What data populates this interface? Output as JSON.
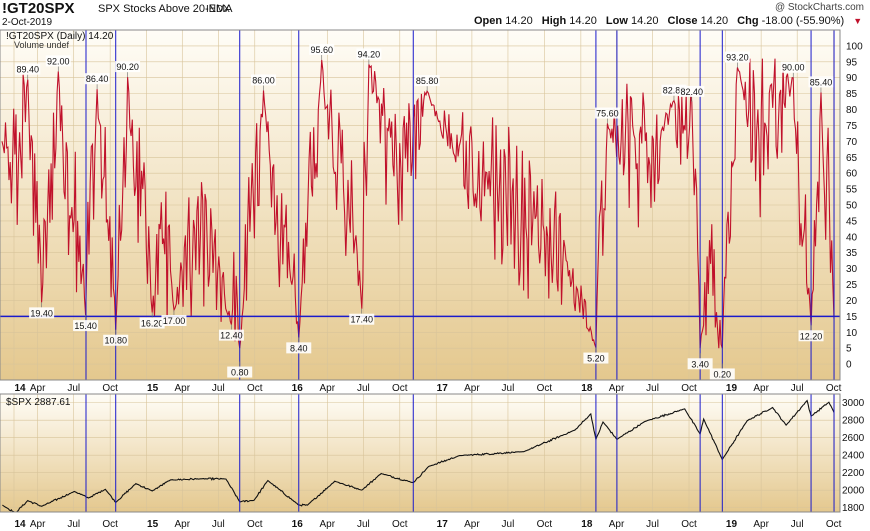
{
  "header": {
    "symbol": "!GT20SPX",
    "description": "SPX Stocks Above 20-EMA",
    "exchange": "INDX",
    "date": "2-Oct-2019",
    "watermark": "@ StockCharts.com",
    "open_label": "Open",
    "open": "14.20",
    "high_label": "High",
    "high": "14.20",
    "low_label": "Low",
    "low": "14.20",
    "close_label": "Close",
    "close": "14.20",
    "chg_label": "Chg",
    "chg": "-18.00 (-55.90%)",
    "chg_icon": "down-triangle-icon"
  },
  "colors": {
    "indicator_line": "#c0112b",
    "spx_line": "#111111",
    "event_lines": "#1a1acc",
    "threshold_line": "#1a1acc",
    "panel_top": "#fffdf7",
    "panel_bottom": "#e4c88e"
  },
  "chart_data": [
    {
      "type": "line",
      "legend": "!GT20SPX (Daily) 14.20",
      "legend2": "Volume undef",
      "ylim": [
        -5,
        105
      ],
      "yticks": [
        0,
        5,
        10,
        15,
        20,
        25,
        30,
        35,
        40,
        45,
        50,
        55,
        60,
        65,
        70,
        75,
        80,
        85,
        90,
        95,
        100
      ],
      "threshold": 15,
      "x_labels": [
        "14",
        "Apr",
        "Jul",
        "Oct",
        "15",
        "Apr",
        "Jul",
        "Oct",
        "16",
        "Apr",
        "Jul",
        "Oct",
        "17",
        "Apr",
        "Jul",
        "Oct",
        "18",
        "Apr",
        "Jul",
        "Oct",
        "19",
        "Apr",
        "Jul",
        "Oct"
      ],
      "event_dates": [
        "2014-08-01",
        "2014-10-15",
        "2015-08-24",
        "2016-01-20",
        "2016-11-04",
        "2018-02-08",
        "2018-04-02",
        "2018-10-29",
        "2018-12-24",
        "2019-08-05",
        "2019-10-02"
      ],
      "annotations": [
        {
          "date": "2014-04-11",
          "value": 19.4,
          "text": "19.40",
          "pos": "below"
        },
        {
          "date": "2014-07-31",
          "value": 15.4,
          "text": "15.40",
          "pos": "below"
        },
        {
          "date": "2014-10-15",
          "value": 10.8,
          "text": "10.80",
          "pos": "below"
        },
        {
          "date": "2015-01-15",
          "value": 16.2,
          "text": "16.20",
          "pos": "below"
        },
        {
          "date": "2015-03-11",
          "value": 17.0,
          "text": "17.00",
          "pos": "below"
        },
        {
          "date": "2015-08-03",
          "value": 12.4,
          "text": "12.40",
          "pos": "below"
        },
        {
          "date": "2015-08-24",
          "value": 0.8,
          "text": "0.80",
          "pos": "below"
        },
        {
          "date": "2016-01-20",
          "value": 8.4,
          "text": "8.40",
          "pos": "below"
        },
        {
          "date": "2016-06-27",
          "value": 17.4,
          "text": "17.40",
          "pos": "below"
        },
        {
          "date": "2018-02-08",
          "value": 5.2,
          "text": "5.20",
          "pos": "below"
        },
        {
          "date": "2018-10-29",
          "value": 3.4,
          "text": "3.40",
          "pos": "below"
        },
        {
          "date": "2018-12-24",
          "value": 0.2,
          "text": "0.20",
          "pos": "below"
        },
        {
          "date": "2019-08-05",
          "value": 12.2,
          "text": "12.20",
          "pos": "below"
        },
        {
          "date": "2014-03-07",
          "value": 89.4,
          "text": "89.40",
          "pos": "above"
        },
        {
          "date": "2014-05-23",
          "value": 92.0,
          "text": "92.00",
          "pos": "above"
        },
        {
          "date": "2014-08-29",
          "value": 86.4,
          "text": "86.40",
          "pos": "above"
        },
        {
          "date": "2014-11-14",
          "value": 90.2,
          "text": "90.20",
          "pos": "above"
        },
        {
          "date": "2015-10-23",
          "value": 86.0,
          "text": "86.00",
          "pos": "above"
        },
        {
          "date": "2016-03-18",
          "value": 95.6,
          "text": "95.60",
          "pos": "above"
        },
        {
          "date": "2016-07-15",
          "value": 94.2,
          "text": "94.20",
          "pos": "above"
        },
        {
          "date": "2016-12-09",
          "value": 85.8,
          "text": "85.80",
          "pos": "above"
        },
        {
          "date": "2018-03-09",
          "value": 75.6,
          "text": "75.60",
          "pos": "above"
        },
        {
          "date": "2018-08-24",
          "value": 82.8,
          "text": "82.80",
          "pos": "above"
        },
        {
          "date": "2018-10-08",
          "value": 82.4,
          "text": "82.40",
          "pos": "above"
        },
        {
          "date": "2019-01-31",
          "value": 93.2,
          "text": "93.20",
          "pos": "above"
        },
        {
          "date": "2019-06-21",
          "value": 90.0,
          "text": "90.00",
          "pos": "above"
        },
        {
          "date": "2019-08-30",
          "value": 85.4,
          "text": "85.40",
          "pos": "above"
        }
      ]
    },
    {
      "type": "line",
      "legend": "$SPX 2887.61",
      "ylim": [
        1750,
        3100
      ],
      "yticks": [
        1800,
        2000,
        2200,
        2400,
        2600,
        2800,
        3000
      ],
      "x_labels": [
        "14",
        "Apr",
        "Jul",
        "Oct",
        "15",
        "Apr",
        "Jul",
        "Oct",
        "16",
        "Apr",
        "Jul",
        "Oct",
        "17",
        "Apr",
        "Jul",
        "Oct",
        "18",
        "Apr",
        "Jul",
        "Oct",
        "19",
        "Apr",
        "Jul",
        "Oct"
      ],
      "anchors": [
        [
          "2014-01-02",
          1830
        ],
        [
          "2014-02-04",
          1740
        ],
        [
          "2014-03-07",
          1880
        ],
        [
          "2014-04-11",
          1815
        ],
        [
          "2014-07-03",
          1985
        ],
        [
          "2014-08-07",
          1910
        ],
        [
          "2014-09-19",
          2010
        ],
        [
          "2014-10-15",
          1860
        ],
        [
          "2014-12-05",
          2075
        ],
        [
          "2015-01-15",
          1990
        ],
        [
          "2015-03-02",
          2117
        ],
        [
          "2015-05-20",
          2130
        ],
        [
          "2015-07-20",
          2128
        ],
        [
          "2015-08-24",
          1867
        ],
        [
          "2015-09-29",
          1884
        ],
        [
          "2015-11-03",
          2110
        ],
        [
          "2016-01-20",
          1829
        ],
        [
          "2016-02-11",
          1829
        ],
        [
          "2016-04-20",
          2102
        ],
        [
          "2016-06-27",
          2000
        ],
        [
          "2016-08-15",
          2190
        ],
        [
          "2016-11-04",
          2085
        ],
        [
          "2016-12-13",
          2271
        ],
        [
          "2017-03-01",
          2395
        ],
        [
          "2017-08-10",
          2440
        ],
        [
          "2017-12-18",
          2690
        ],
        [
          "2018-01-26",
          2872
        ],
        [
          "2018-02-08",
          2581
        ],
        [
          "2018-02-26",
          2780
        ],
        [
          "2018-04-02",
          2581
        ],
        [
          "2018-06-12",
          2786
        ],
        [
          "2018-09-20",
          2930
        ],
        [
          "2018-10-29",
          2641
        ],
        [
          "2018-11-07",
          2813
        ],
        [
          "2018-12-24",
          2351
        ],
        [
          "2019-02-25",
          2796
        ],
        [
          "2019-04-30",
          2945
        ],
        [
          "2019-06-03",
          2744
        ],
        [
          "2019-07-26",
          3025
        ],
        [
          "2019-08-05",
          2845
        ],
        [
          "2019-09-19",
          3006
        ],
        [
          "2019-10-02",
          2887.61
        ]
      ]
    }
  ]
}
